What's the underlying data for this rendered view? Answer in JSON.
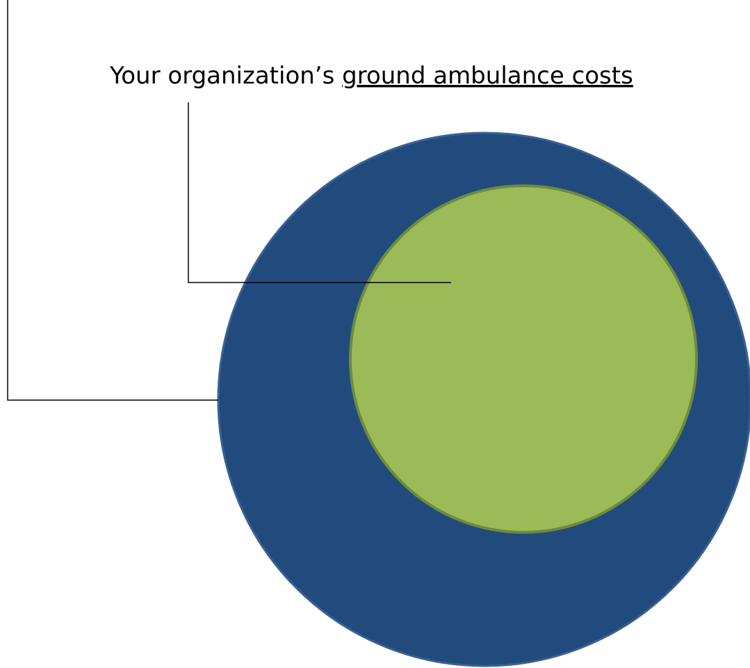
{
  "label": {
    "prefix": "Your organization’s ",
    "underlined": "ground ambulance costs"
  },
  "colors": {
    "outer_circle_fill": "#224B7D",
    "outer_circle_stroke": "#3A6194",
    "inner_circle_fill": "#9BBB59",
    "inner_circle_stroke": "#6E8B3D",
    "connector_line": "#000000"
  }
}
